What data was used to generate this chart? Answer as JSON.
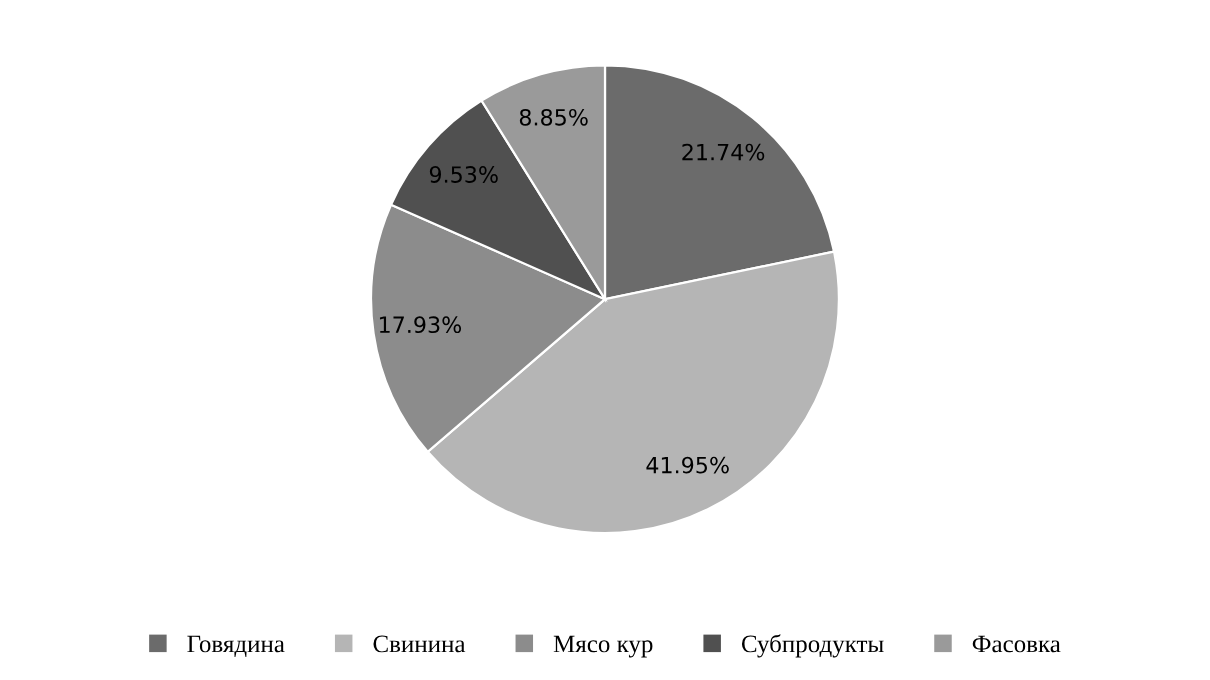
{
  "chart_data": {
    "type": "pie",
    "categories": [
      "Говядина",
      "Свинина",
      "Мясо кур",
      "Субпродукты",
      "Фасовка"
    ],
    "values": [
      21.74,
      41.95,
      17.93,
      9.53,
      8.85
    ],
    "value_labels": [
      "21.74%",
      "41.95%",
      "17.93%",
      "9.53%",
      "8.85%"
    ],
    "colors": [
      "#6b6b6b",
      "#b5b5b5",
      "#8c8c8c",
      "#505050",
      "#9a9a9a"
    ],
    "legend": "bottom"
  }
}
